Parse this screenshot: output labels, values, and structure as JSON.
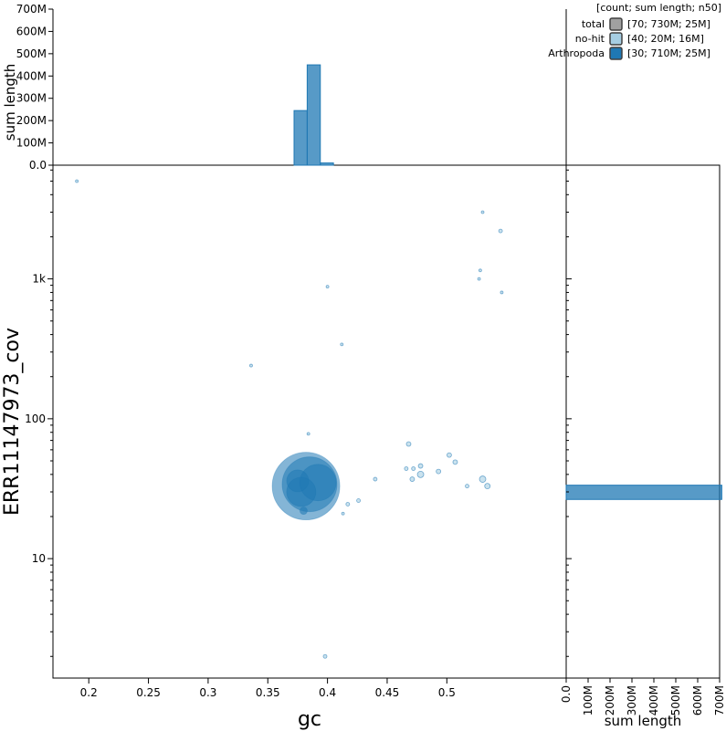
{
  "chart_data": {
    "type": "scatter",
    "x_axis": {
      "label": "gc",
      "domain": [
        0.17,
        0.6
      ],
      "ticks": [
        {
          "value": 0.2,
          "label": "0.2"
        },
        {
          "value": 0.25,
          "label": "0.25"
        },
        {
          "value": 0.3,
          "label": "0.3"
        },
        {
          "value": 0.35,
          "label": "0.35"
        },
        {
          "value": 0.4,
          "label": "0.4"
        },
        {
          "value": 0.45,
          "label": "0.45"
        },
        {
          "value": 0.5,
          "label": "0.5"
        }
      ]
    },
    "y_axis": {
      "label": "ERR11147973_cov",
      "scale": "log",
      "domain": [
        1.4,
        6500
      ],
      "ticks": [
        {
          "value": 10,
          "label": "10"
        },
        {
          "value": 100,
          "label": "100"
        },
        {
          "value": 1000,
          "label": "1k"
        }
      ]
    },
    "top_histogram": {
      "ylabel": "sum length",
      "ylim": [
        0,
        700
      ],
      "ticks": [
        {
          "value": 0,
          "label": "0.0"
        },
        {
          "value": 100,
          "label": "100M"
        },
        {
          "value": 200,
          "label": "200M"
        },
        {
          "value": 300,
          "label": "300M"
        },
        {
          "value": 400,
          "label": "400M"
        },
        {
          "value": 500,
          "label": "500M"
        },
        {
          "value": 600,
          "label": "600M"
        },
        {
          "value": 700,
          "label": "700M"
        }
      ],
      "bins": [
        {
          "x0": 0.372,
          "x1": 0.383,
          "value": 245
        },
        {
          "x0": 0.383,
          "x1": 0.394,
          "value": 450
        },
        {
          "x0": 0.394,
          "x1": 0.405,
          "value": 10
        }
      ]
    },
    "right_histogram": {
      "xlabel": "sum length",
      "xlim": [
        0,
        700
      ],
      "ticks": [
        {
          "value": 0,
          "label": "0.0"
        },
        {
          "value": 100,
          "label": "100M"
        },
        {
          "value": 200,
          "label": "200M"
        },
        {
          "value": 300,
          "label": "300M"
        },
        {
          "value": 400,
          "label": "400M"
        },
        {
          "value": 500,
          "label": "500M"
        },
        {
          "value": 600,
          "label": "600M"
        },
        {
          "value": 700,
          "label": "700M"
        }
      ],
      "bins": [
        {
          "y0": 26.5,
          "y1": 33.5,
          "value": 710
        }
      ]
    },
    "legend": {
      "title": "[count; sum length; n50]",
      "placement": "top-right",
      "entries": [
        {
          "name": "total",
          "stats": "[70; 730M; 25M]",
          "fill": "#a0a0a0",
          "stroke": "#404040"
        },
        {
          "name": "no-hit",
          "stats": "[40; 20M; 16M]",
          "fill": "#a6cee3",
          "stroke": "#404040"
        },
        {
          "name": "Arthropoda",
          "stats": "[30; 710M; 25M]",
          "fill": "#1f78b4",
          "stroke": "#404040"
        }
      ]
    },
    "series": [
      {
        "name": "no-hit",
        "fill": "#a6cee3",
        "stroke": "#1f78b4",
        "points": [
          {
            "gc": 0.19,
            "cov": 5000,
            "r": 1.5
          },
          {
            "gc": 0.336,
            "cov": 240,
            "r": 1.5
          },
          {
            "gc": 0.4,
            "cov": 880,
            "r": 1.5
          },
          {
            "gc": 0.412,
            "cov": 340,
            "r": 1.5
          },
          {
            "gc": 0.53,
            "cov": 3000,
            "r": 1.5
          },
          {
            "gc": 0.545,
            "cov": 2200,
            "r": 2
          },
          {
            "gc": 0.528,
            "cov": 1150,
            "r": 1.5
          },
          {
            "gc": 0.527,
            "cov": 1000,
            "r": 1.5
          },
          {
            "gc": 0.546,
            "cov": 800,
            "r": 1.5
          },
          {
            "gc": 0.384,
            "cov": 78,
            "r": 1.5
          },
          {
            "gc": 0.468,
            "cov": 66,
            "r": 2.5
          },
          {
            "gc": 0.502,
            "cov": 55,
            "r": 2.5
          },
          {
            "gc": 0.507,
            "cov": 49,
            "r": 2.5
          },
          {
            "gc": 0.478,
            "cov": 46,
            "r": 2.5
          },
          {
            "gc": 0.466,
            "cov": 44,
            "r": 2
          },
          {
            "gc": 0.472,
            "cov": 44,
            "r": 2
          },
          {
            "gc": 0.478,
            "cov": 40,
            "r": 3.5
          },
          {
            "gc": 0.493,
            "cov": 42,
            "r": 2.5
          },
          {
            "gc": 0.44,
            "cov": 37,
            "r": 2
          },
          {
            "gc": 0.471,
            "cov": 37,
            "r": 2.5
          },
          {
            "gc": 0.53,
            "cov": 37,
            "r": 3.5
          },
          {
            "gc": 0.534,
            "cov": 33,
            "r": 3
          },
          {
            "gc": 0.517,
            "cov": 33,
            "r": 2
          },
          {
            "gc": 0.426,
            "cov": 26,
            "r": 2
          },
          {
            "gc": 0.417,
            "cov": 24.5,
            "r": 2
          },
          {
            "gc": 0.413,
            "cov": 21,
            "r": 1.5
          },
          {
            "gc": 0.398,
            "cov": 2,
            "r": 2
          }
        ]
      },
      {
        "name": "Arthropoda",
        "fill": "#1f78b4",
        "stroke": "#1f78b4",
        "points": [
          {
            "gc": 0.382,
            "cov": 33,
            "r": 37
          },
          {
            "gc": 0.385,
            "cov": 34,
            "r": 30
          },
          {
            "gc": 0.392,
            "cov": 35,
            "r": 20
          },
          {
            "gc": 0.378,
            "cov": 30,
            "r": 16
          },
          {
            "gc": 0.375,
            "cov": 36,
            "r": 12
          },
          {
            "gc": 0.38,
            "cov": 22,
            "r": 4
          }
        ]
      }
    ]
  }
}
